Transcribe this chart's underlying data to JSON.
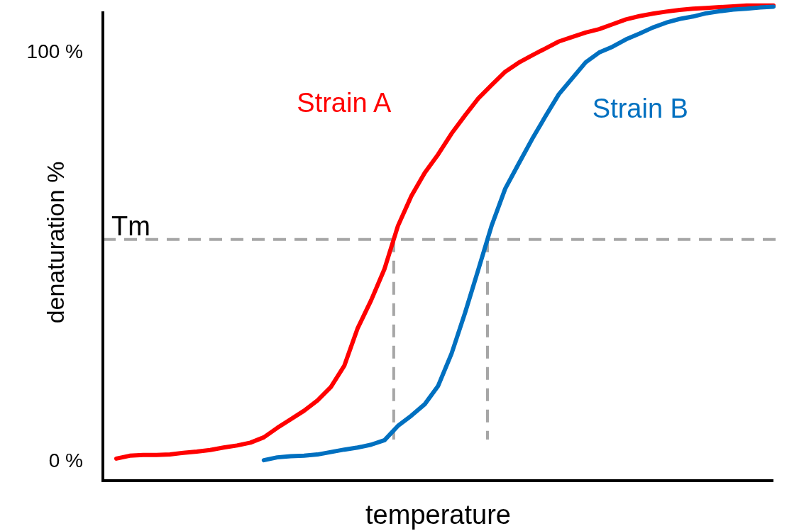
{
  "chart_data": {
    "type": "line",
    "xlabel": "temperature",
    "ylabel": "denaturation %",
    "categories": [
      null,
      null,
      null,
      null,
      null,
      null,
      null,
      null,
      null,
      null,
      null,
      null,
      null,
      null,
      null,
      null,
      null,
      null,
      null,
      null,
      null,
      null,
      null,
      null,
      null,
      null,
      null,
      null,
      null,
      null,
      null,
      null,
      null,
      null,
      null,
      null,
      null,
      null,
      null,
      null,
      null,
      null,
      null,
      null,
      null,
      null,
      null,
      null,
      null,
      null,
      null
    ],
    "ylim": [
      -5,
      111.5
    ],
    "yticks": [
      {
        "value": 0,
        "label": "0 %"
      },
      {
        "value": 100,
        "label": "100 %"
      }
    ],
    "tick_labels": "y",
    "line_style": "solid",
    "marker": "none",
    "series": [
      {
        "name": "Strain A",
        "color": "#ff0000",
        "values": [
          null,
          0.4,
          1.1,
          1.3,
          1.3,
          1.4,
          1.8,
          2.1,
          2.5,
          3.1,
          3.6,
          4.3,
          5.6,
          7.9,
          10.0,
          12.1,
          14.6,
          17.9,
          23.1,
          32.3,
          39.1,
          46.8,
          57.3,
          64.6,
          70.3,
          74.8,
          79.9,
          84.3,
          88.5,
          91.8,
          95.0,
          97.2,
          99.0,
          100.7,
          102.4,
          103.5,
          104.6,
          105.4,
          106.6,
          107.8,
          108.6,
          109.2,
          109.7,
          110.1,
          110.4,
          110.6,
          110.8,
          111.0,
          111.2,
          111.2,
          111.2
        ]
      },
      {
        "name": "Strain B",
        "color": "#0070c0",
        "values": [
          null,
          null,
          null,
          null,
          null,
          null,
          null,
          null,
          null,
          null,
          null,
          null,
          0,
          0.7,
          1.0,
          1.1,
          1.4,
          2.0,
          2.6,
          3.1,
          3.8,
          4.9,
          8.4,
          10.9,
          13.7,
          18.2,
          26.1,
          36.0,
          46.7,
          57.5,
          66.4,
          72.5,
          78.5,
          84.1,
          89.5,
          93.4,
          97.3,
          99.7,
          101.1,
          102.9,
          104.3,
          105.8,
          107.0,
          107.9,
          108.5,
          109.3,
          109.8,
          110.2,
          110.4,
          110.7,
          110.9
        ]
      }
    ],
    "ref_lines": [
      {
        "axis": "y",
        "value": 54,
        "label": "Tm",
        "color": "#a6a6a6",
        "line_style": "dashed"
      }
    ]
  }
}
